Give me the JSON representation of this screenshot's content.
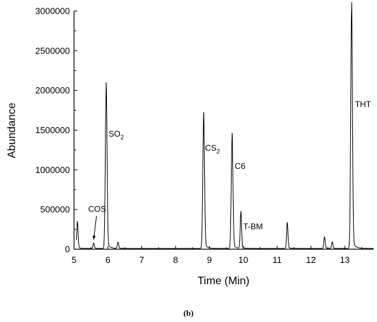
{
  "chart_data": {
    "type": "line",
    "xlabel": "Time (Min)",
    "ylabel": "Abundance",
    "caption": "(b)",
    "xlim": [
      5,
      13.85
    ],
    "ylim": [
      0,
      3000000
    ],
    "x_ticks": [
      "5",
      "6",
      "7",
      "8",
      "9",
      "10",
      "11",
      "12",
      "13"
    ],
    "y_ticks": [
      "0",
      "500000",
      "1000000",
      "1500000",
      "2000000",
      "2500000",
      "3000000"
    ],
    "baseline": 10000,
    "peaks": [
      {
        "x": 5.1,
        "y": 330000,
        "label": ""
      },
      {
        "x": 5.58,
        "y": 65000,
        "label": "COS"
      },
      {
        "x": 5.95,
        "y": 2010000,
        "label": "SO2"
      },
      {
        "x": 6.3,
        "y": 75000,
        "label": ""
      },
      {
        "x": 8.83,
        "y": 1650000,
        "label": "CS2"
      },
      {
        "x": 9.67,
        "y": 1400000,
        "label": "C6"
      },
      {
        "x": 9.93,
        "y": 450000,
        "label": "T-BM"
      },
      {
        "x": 11.3,
        "y": 320000,
        "label": ""
      },
      {
        "x": 12.4,
        "y": 140000,
        "label": ""
      },
      {
        "x": 12.63,
        "y": 80000,
        "label": ""
      },
      {
        "x": 13.2,
        "y": 3000000,
        "label": "THT"
      }
    ],
    "annotations": [
      {
        "text": "COS",
        "x": 5.42,
        "y": 470000,
        "arrow_to": {
          "x": 5.58,
          "y": 70000
        }
      },
      {
        "text": "SO",
        "sub": "2",
        "x": 6.02,
        "y": 1420000
      },
      {
        "text": "CS",
        "sub": "2",
        "x": 8.87,
        "y": 1240000
      },
      {
        "text": "C6",
        "x": 9.75,
        "y": 1010000
      },
      {
        "text": "T-BM",
        "x": 10.0,
        "y": 250000
      },
      {
        "text": "THT",
        "x": 13.3,
        "y": 1790000
      }
    ]
  }
}
